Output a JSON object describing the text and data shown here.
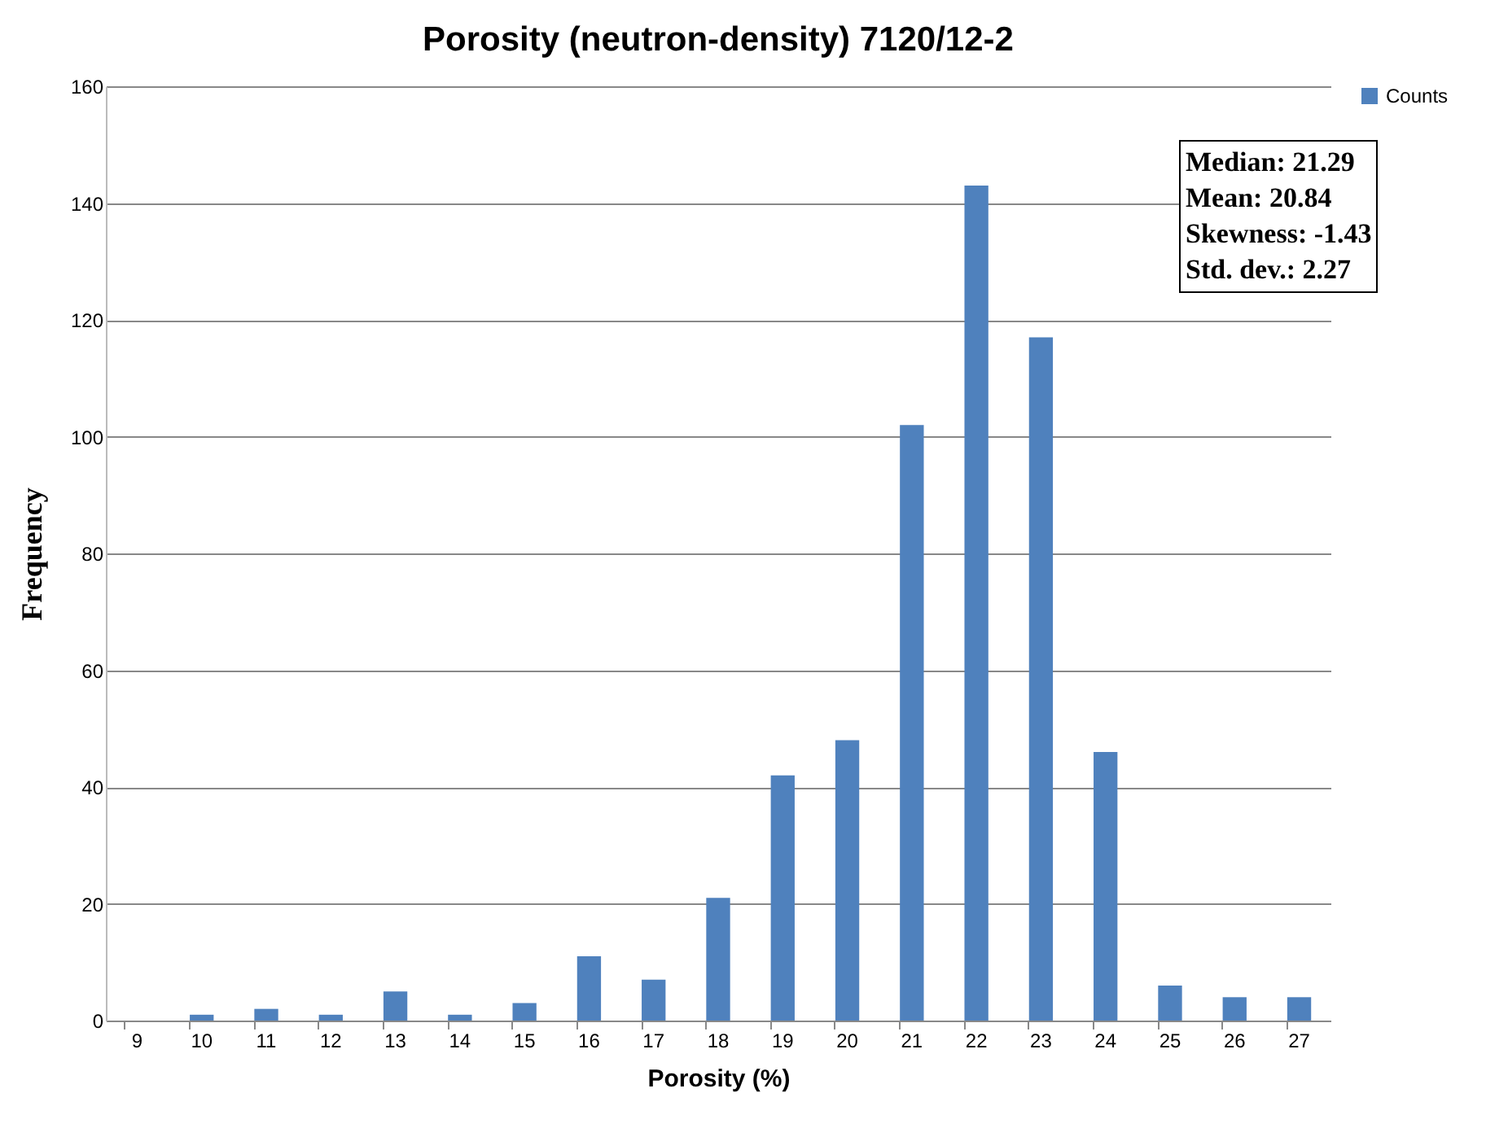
{
  "chart_data": {
    "type": "bar",
    "title": "Porosity (neutron-density) 7120/12-2",
    "xlabel": "Porosity (%)",
    "ylabel": "Frequency",
    "categories": [
      "9",
      "10",
      "11",
      "12",
      "13",
      "14",
      "15",
      "16",
      "17",
      "18",
      "19",
      "20",
      "21",
      "22",
      "23",
      "24",
      "25",
      "26",
      "27"
    ],
    "series": [
      {
        "name": "Counts",
        "color": "#4f81bd",
        "values": [
          0,
          1,
          2,
          1,
          5,
          1,
          3,
          11,
          7,
          21,
          42,
          48,
          102,
          143,
          117,
          46,
          6,
          4,
          4
        ]
      }
    ],
    "ylim": [
      0,
      160
    ],
    "yticks": [
      0,
      20,
      40,
      60,
      80,
      100,
      120,
      140,
      160
    ],
    "grid": "y",
    "legend": "right",
    "annotations": [
      "Median: 21.29",
      "Mean: 20.84",
      "Skewness: -1.43",
      "Std. dev.: 2.27"
    ]
  }
}
